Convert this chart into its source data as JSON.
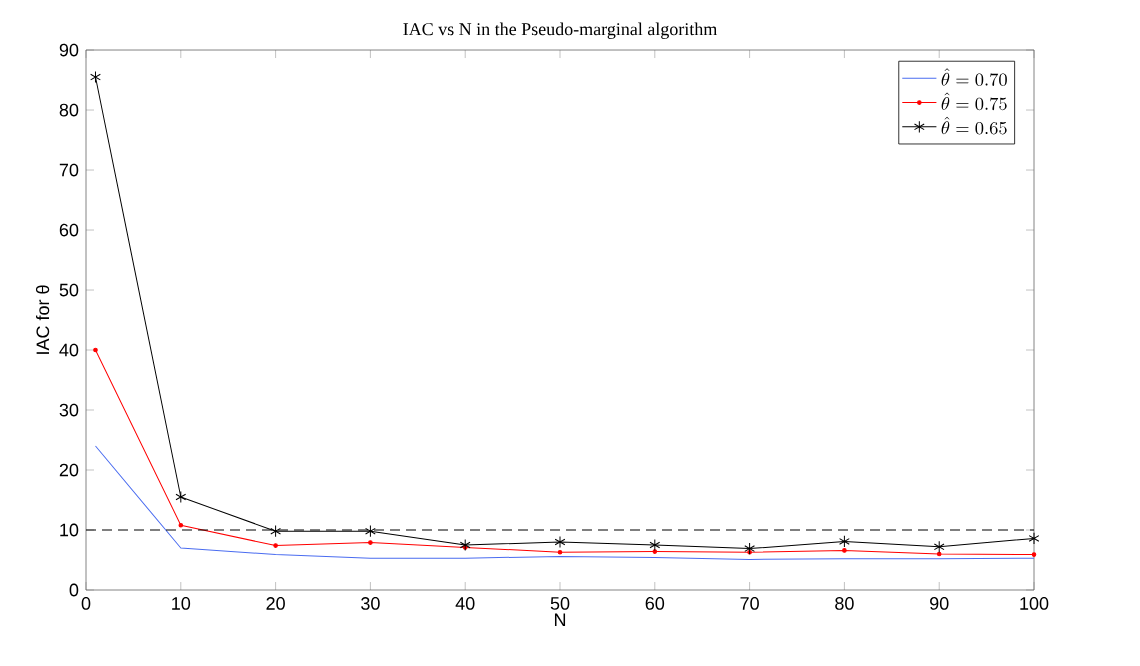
{
  "chart_data": {
    "type": "line",
    "title": "IAC vs N in the Pseudo-marginal algorithm",
    "xlabel": "N",
    "ylabel": "IAC for θ",
    "x": [
      1,
      10,
      20,
      30,
      40,
      50,
      60,
      70,
      80,
      90,
      100
    ],
    "series": [
      {
        "name": "\\hat{\\theta} = 0.70",
        "color": "#4a6cf0",
        "marker": "none",
        "values": [
          24,
          7,
          5.9,
          5.3,
          5.3,
          5.6,
          5.4,
          5.1,
          5.2,
          5.2,
          5.3
        ]
      },
      {
        "name": "\\hat{\\theta} = 0.75",
        "color": "#ff0000",
        "marker": "circle",
        "values": [
          40,
          10.8,
          7.4,
          7.9,
          7.1,
          6.3,
          6.4,
          6.3,
          6.6,
          6.0,
          5.9
        ]
      },
      {
        "name": "\\hat{\\theta} = 0.65",
        "color": "#000000",
        "marker": "cross",
        "values": [
          85.5,
          15.5,
          9.8,
          9.8,
          7.5,
          8.0,
          7.5,
          6.9,
          8.1,
          7.2,
          8.6
        ]
      }
    ],
    "xlim": [
      0,
      100
    ],
    "ylim": [
      0,
      90
    ],
    "xticks": [
      0,
      10,
      20,
      30,
      40,
      50,
      60,
      70,
      80,
      90,
      100
    ],
    "yticks": [
      0,
      10,
      20,
      30,
      40,
      50,
      60,
      70,
      80,
      90
    ],
    "ref_lines": [
      {
        "axis": "y",
        "value": 10,
        "line_style": "dashed",
        "color": "#000000"
      }
    ],
    "legend": "top right",
    "grid": false,
    "line_style": "solid"
  }
}
